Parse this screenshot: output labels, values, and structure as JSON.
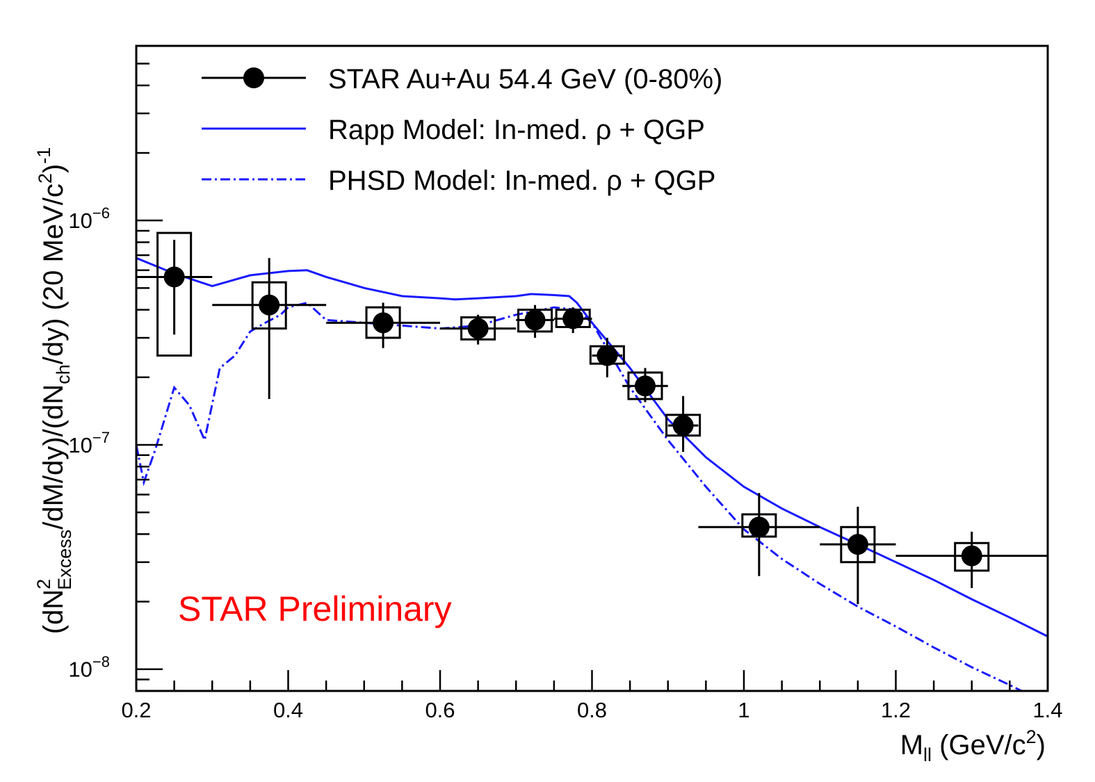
{
  "chart_data": {
    "type": "scatter",
    "xlabel": "M",
    "xlabel_sub": "ll",
    "xlabel_unit": "(GeV/c",
    "ylabel_parts": {
      "p1": "(dN",
      "sup2": "2",
      "subExcess": "Excess",
      "p2": "/dM/dy)/(dN",
      "subch": "ch",
      "p3": "/dy) (20 MeV/c",
      "p4": ")",
      "supm1": "-1"
    },
    "xlim": [
      0.2,
      1.4
    ],
    "ylim": [
      8e-09,
      6e-06
    ],
    "yscale": "log",
    "x_ticks": [
      "0.2",
      "0.4",
      "0.6",
      "0.8",
      "1",
      "1.2",
      "1.4"
    ],
    "y_ticks": [
      {
        "base": "10",
        "exp": "−6",
        "value": 1e-06
      },
      {
        "base": "10",
        "exp": "−7",
        "value": 1e-07
      },
      {
        "base": "10",
        "exp": "−8",
        "value": 1e-08
      }
    ],
    "annotation": "STAR Preliminary",
    "legend_position": "top",
    "legend": [
      {
        "label": "STAR Au+Au 54.4 GeV (0-80%)",
        "style": "marker"
      },
      {
        "label": "Rapp Model: In-med. ρ + QGP",
        "style": "solid"
      },
      {
        "label": "PHSD Model: In-med. ρ + QGP",
        "style": "dashdot"
      }
    ],
    "colors": {
      "data": "#000000",
      "model": "#1a1aff",
      "annotation": "#ff0000"
    },
    "series": [
      {
        "name": "STAR Au+Au 54.4 GeV (0-80%)",
        "points": [
          {
            "x": 0.25,
            "y": 5.6e-07,
            "xlo": 0.2,
            "xhi": 0.3,
            "ylo": 3.1e-07,
            "yhi": 8.2e-07,
            "syslo": 2.5e-07,
            "syshi": 8.8e-07,
            "sysw": 0.022
          },
          {
            "x": 0.375,
            "y": 4.2e-07,
            "xlo": 0.3,
            "xhi": 0.45,
            "ylo": 1.6e-07,
            "yhi": 6.8e-07,
            "syslo": 3.3e-07,
            "syshi": 5.3e-07,
            "sysw": 0.022
          },
          {
            "x": 0.525,
            "y": 3.5e-07,
            "xlo": 0.45,
            "xhi": 0.6,
            "ylo": 2.7e-07,
            "yhi": 4.3e-07,
            "syslo": 3e-07,
            "syshi": 4.1e-07,
            "sysw": 0.022
          },
          {
            "x": 0.65,
            "y": 3.3e-07,
            "xlo": 0.6,
            "xhi": 0.7,
            "ylo": 2.8e-07,
            "yhi": 3.8e-07,
            "syslo": 2.95e-07,
            "syshi": 3.7e-07,
            "sysw": 0.022
          },
          {
            "x": 0.725,
            "y": 3.6e-07,
            "xlo": 0.7,
            "xhi": 0.75,
            "ylo": 3e-07,
            "yhi": 4.2e-07,
            "syslo": 3.2e-07,
            "syshi": 4e-07,
            "sysw": 0.022
          },
          {
            "x": 0.775,
            "y": 3.65e-07,
            "xlo": 0.75,
            "xhi": 0.8,
            "ylo": 3.15e-07,
            "yhi": 4.1e-07,
            "syslo": 3.35e-07,
            "syshi": 4e-07,
            "sysw": 0.022
          },
          {
            "x": 0.82,
            "y": 2.5e-07,
            "xlo": 0.8,
            "xhi": 0.84,
            "ylo": 2e-07,
            "yhi": 3e-07,
            "syslo": 2.3e-07,
            "syshi": 2.75e-07,
            "sysw": 0.022
          },
          {
            "x": 0.87,
            "y": 1.83e-07,
            "xlo": 0.84,
            "xhi": 0.9,
            "ylo": 1.55e-07,
            "yhi": 2.2e-07,
            "syslo": 1.6e-07,
            "syshi": 2.1e-07,
            "sysw": 0.022
          },
          {
            "x": 0.92,
            "y": 1.22e-07,
            "xlo": 0.9,
            "xhi": 0.94,
            "ylo": 9.3e-08,
            "yhi": 1.65e-07,
            "syslo": 1.1e-07,
            "syshi": 1.36e-07,
            "sysw": 0.022
          },
          {
            "x": 1.02,
            "y": 4.3e-08,
            "xlo": 0.94,
            "xhi": 1.1,
            "ylo": 2.6e-08,
            "yhi": 6.1e-08,
            "syslo": 3.9e-08,
            "syshi": 4.9e-08,
            "sysw": 0.022
          },
          {
            "x": 1.15,
            "y": 3.6e-08,
            "xlo": 1.1,
            "xhi": 1.2,
            "ylo": 1.95e-08,
            "yhi": 5.3e-08,
            "syslo": 3e-08,
            "syshi": 4.3e-08,
            "sysw": 0.022
          },
          {
            "x": 1.3,
            "y": 3.2e-08,
            "xlo": 1.2,
            "xhi": 1.4,
            "ylo": 2.3e-08,
            "yhi": 4.1e-08,
            "syslo": 2.75e-08,
            "syshi": 3.65e-08,
            "sysw": 0.022
          }
        ]
      },
      {
        "name": "Rapp Model: In-med. ρ + QGP",
        "x": [
          0.2,
          0.25,
          0.3,
          0.35,
          0.4,
          0.425,
          0.45,
          0.5,
          0.55,
          0.6,
          0.62,
          0.65,
          0.7,
          0.72,
          0.75,
          0.77,
          0.78,
          0.8,
          0.85,
          0.9,
          0.95,
          1.0,
          1.05,
          1.1,
          1.15,
          1.2,
          1.25,
          1.3,
          1.35,
          1.4
        ],
        "y": [
          6.8e-07,
          5.8e-07,
          5.1e-07,
          5.7e-07,
          5.95e-07,
          6e-07,
          5.6e-07,
          5e-07,
          4.6e-07,
          4.5e-07,
          4.45e-07,
          4.5e-07,
          4.6e-07,
          4.7e-07,
          4.65e-07,
          4.6e-07,
          4.3e-07,
          3.5e-07,
          2.2e-07,
          1.3e-07,
          8.8e-08,
          6.5e-08,
          5.2e-08,
          4.3e-08,
          3.6e-08,
          3e-08,
          2.5e-08,
          2.05e-08,
          1.7e-08,
          1.4e-08
        ]
      },
      {
        "name": "PHSD Model: In-med. ρ + QGP",
        "x": [
          0.2,
          0.21,
          0.225,
          0.25,
          0.27,
          0.29,
          0.31,
          0.33,
          0.35,
          0.37,
          0.39,
          0.4,
          0.425,
          0.45,
          0.5,
          0.55,
          0.6,
          0.65,
          0.7,
          0.75,
          0.78,
          0.8,
          0.85,
          0.9,
          0.95,
          1.0,
          1.05,
          1.1,
          1.15,
          1.2,
          1.25,
          1.3,
          1.35,
          1.4
        ],
        "y": [
          1e-07,
          6.8e-08,
          9.5e-08,
          1.8e-07,
          1.5e-07,
          1.05e-07,
          2.2e-07,
          2.5e-07,
          3.2e-07,
          3.5e-07,
          3.8e-07,
          4.1e-07,
          4.3e-07,
          3.6e-07,
          3.5e-07,
          3.4e-07,
          3.3e-07,
          3.4e-07,
          3.8e-07,
          4.1e-07,
          4e-07,
          3.5e-07,
          1.8e-07,
          1.05e-07,
          6.5e-08,
          4.2e-08,
          3.1e-08,
          2.4e-08,
          1.9e-08,
          1.55e-08,
          1.25e-08,
          1.02e-08,
          8.5e-09,
          7e-09
        ]
      }
    ]
  }
}
